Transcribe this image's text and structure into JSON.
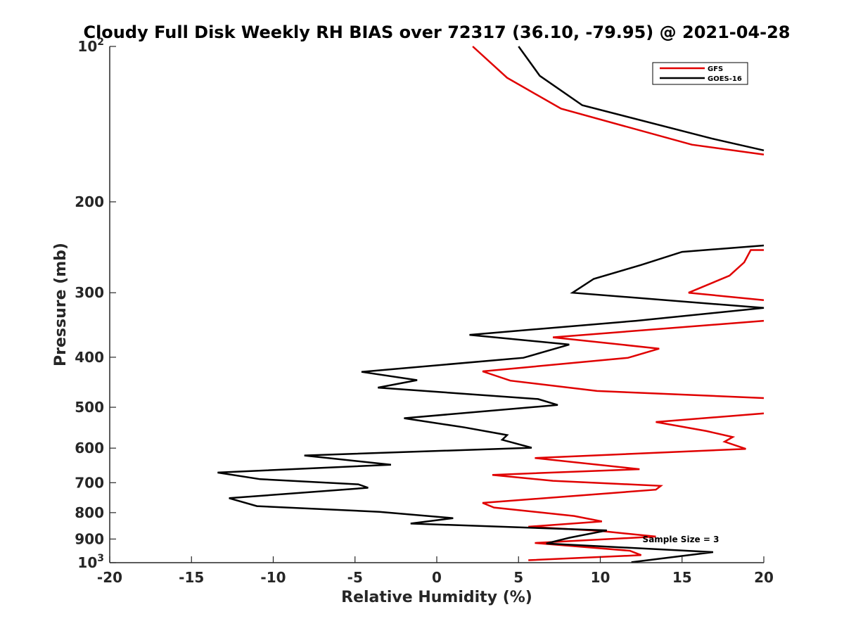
{
  "chart_data": {
    "type": "line",
    "title": "Cloudy Full Disk Weekly RH BIAS over 72317 (36.10, -79.95) @ 2021-04-28",
    "xlabel": "Relative Humidity (%)",
    "ylabel": "Pressure (mb)",
    "xlim": [
      -20,
      20
    ],
    "ylim": [
      100,
      1000
    ],
    "y_scale": "log",
    "y_reversed": true,
    "grid": false,
    "legend_position": "top-right",
    "x_ticks": [
      -20,
      -15,
      -10,
      -5,
      0,
      5,
      10,
      15,
      20
    ],
    "x_tick_labels": [
      "-20",
      "-15",
      "-10",
      "-5",
      "0",
      "5",
      "10",
      "15",
      "20"
    ],
    "y_ticks": [
      {
        "value": 100,
        "base": "10",
        "exp": "2"
      },
      {
        "value": 200,
        "label": "200"
      },
      {
        "value": 300,
        "label": "300"
      },
      {
        "value": 400,
        "label": "400"
      },
      {
        "value": 500,
        "label": "500"
      },
      {
        "value": 600,
        "label": "600"
      },
      {
        "value": 700,
        "label": "700"
      },
      {
        "value": 800,
        "label": "800"
      },
      {
        "value": 900,
        "label": "900"
      },
      {
        "value": 1000,
        "base": "10",
        "exp": "3"
      }
    ],
    "annotation": "Sample Size = 3",
    "series": [
      {
        "name": "GFS",
        "color": "#e00000",
        "segments": [
          [
            [
              2.2,
              100
            ],
            [
              4.3,
              115
            ],
            [
              7.6,
              132
            ],
            [
              15.6,
              155
            ],
            [
              20.0,
              162
            ]
          ],
          [
            [
              20.0,
              248
            ],
            [
              19.2,
              248
            ],
            [
              18.8,
              262
            ],
            [
              17.9,
              278
            ],
            [
              15.4,
              300
            ],
            [
              20.0,
              310
            ]
          ],
          [
            [
              20.0,
              340
            ],
            [
              7.1,
              366
            ],
            [
              13.6,
              385
            ],
            [
              11.7,
              401
            ],
            [
              2.8,
              426
            ],
            [
              4.5,
              444
            ],
            [
              9.8,
              465
            ],
            [
              20.0,
              480
            ]
          ],
          [
            [
              20.0,
              514
            ],
            [
              13.4,
              534
            ],
            [
              16.5,
              556
            ],
            [
              18.1,
              571
            ],
            [
              17.6,
              583
            ],
            [
              18.9,
              602
            ],
            [
              6.0,
              627
            ],
            [
              12.4,
              659
            ],
            [
              3.4,
              676
            ],
            [
              7.1,
              694
            ],
            [
              13.7,
              710
            ],
            [
              13.4,
              722
            ],
            [
              2.8,
              766
            ],
            [
              3.5,
              782
            ],
            [
              8.4,
              812
            ],
            [
              10.1,
              832
            ],
            [
              5.6,
              852
            ],
            [
              10.0,
              868
            ],
            [
              13.4,
              890
            ],
            [
              6.0,
              916
            ],
            [
              11.8,
              948
            ],
            [
              12.5,
              967
            ],
            [
              5.6,
              989
            ]
          ]
        ]
      },
      {
        "name": "GOES-16",
        "color": "#000000",
        "segments": [
          [
            [
              5.0,
              100
            ],
            [
              6.3,
              114
            ],
            [
              8.9,
              130
            ],
            [
              16.9,
              151
            ],
            [
              20.0,
              159
            ]
          ],
          [
            [
              20.0,
              243
            ],
            [
              15.0,
              250
            ],
            [
              12.5,
              265
            ],
            [
              9.6,
              282
            ],
            [
              8.3,
              300
            ],
            [
              20.0,
              321
            ],
            [
              12.2,
              340
            ],
            [
              2.0,
              362
            ],
            [
              8.1,
              378
            ],
            [
              5.3,
              401
            ],
            [
              -4.6,
              427
            ],
            [
              -1.2,
              443
            ],
            [
              -3.6,
              458
            ],
            [
              6.2,
              482
            ],
            [
              7.4,
              495
            ],
            [
              -2.0,
              525
            ],
            [
              1.7,
              547
            ],
            [
              4.3,
              566
            ],
            [
              4.0,
              578
            ],
            [
              5.8,
              599
            ],
            [
              -8.1,
              620
            ],
            [
              -2.8,
              646
            ],
            [
              -13.4,
              669
            ],
            [
              -10.8,
              689
            ],
            [
              -4.8,
              705
            ],
            [
              -4.2,
              716
            ],
            [
              -12.7,
              750
            ],
            [
              -11.0,
              777
            ],
            [
              -3.5,
              797
            ],
            [
              1.0,
              820
            ],
            [
              -1.6,
              840
            ],
            [
              10.4,
              866
            ],
            [
              8.1,
              895
            ],
            [
              6.7,
              918
            ],
            [
              16.9,
              954
            ],
            [
              11.9,
              998
            ]
          ]
        ]
      }
    ]
  }
}
